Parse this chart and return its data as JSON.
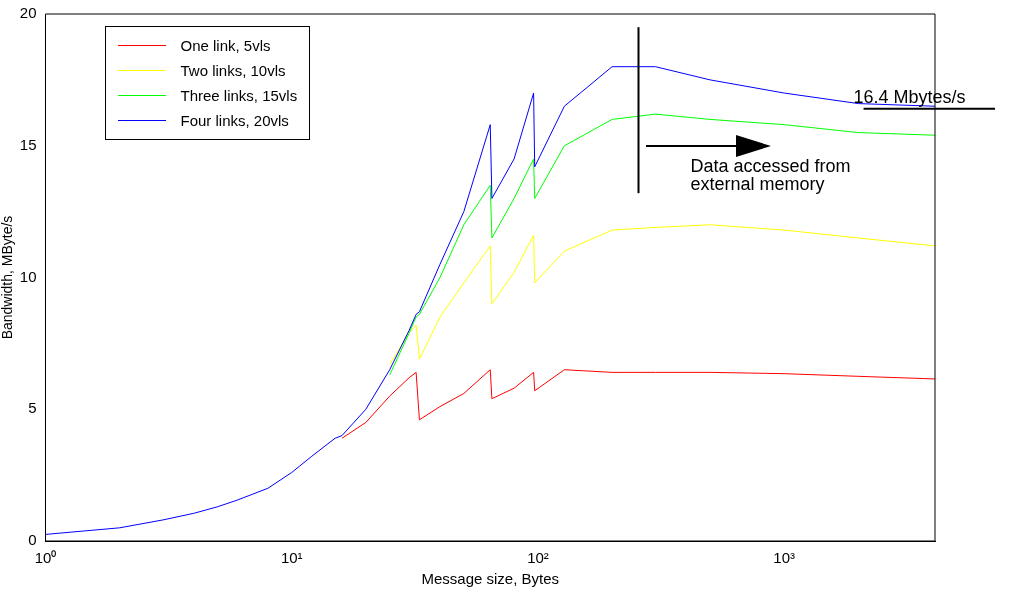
{
  "chart_data": {
    "type": "line",
    "xlabel": "Message size, Bytes",
    "ylabel": "Bandwidth, MByte/s",
    "log": "x",
    "xlim": [
      1,
      4096
    ],
    "ylim": [
      0,
      20
    ],
    "xticks": [
      {
        "value": 1,
        "label": "10⁰"
      },
      {
        "value": 10,
        "label": "10¹"
      },
      {
        "value": 100,
        "label": "10²"
      },
      {
        "value": 1000,
        "label": "10³"
      }
    ],
    "yticks": [
      0,
      5,
      10,
      15,
      20
    ],
    "grid": false,
    "legend": "top left",
    "marker": "none",
    "line_style": "solid",
    "x": [
      1,
      2,
      3,
      4,
      5,
      6,
      8,
      10,
      12,
      15,
      16,
      20,
      25,
      30,
      32,
      33,
      40,
      50,
      64,
      65,
      80,
      96,
      97,
      128,
      200,
      300,
      500,
      1000,
      2000,
      4096
    ],
    "series": [
      {
        "name": "One link, 5vls",
        "color": "#ff0000",
        "values": [
          null,
          null,
          null,
          null,
          null,
          null,
          null,
          null,
          null,
          null,
          3.9,
          4.5,
          5.5,
          6.2,
          6.4,
          4.6,
          5.1,
          5.6,
          6.5,
          5.4,
          5.8,
          6.4,
          5.7,
          6.5,
          6.4,
          6.4,
          6.4,
          6.35,
          6.25,
          6.15
        ]
      },
      {
        "name": "Two links, 10vls",
        "color": "#ffff00",
        "values": [
          null,
          null,
          null,
          null,
          null,
          null,
          null,
          null,
          null,
          null,
          null,
          null,
          6.7,
          7.9,
          8.2,
          6.9,
          8.5,
          9.8,
          11.2,
          9.0,
          10.2,
          11.6,
          9.8,
          11.0,
          11.8,
          11.9,
          12.0,
          11.8,
          11.5,
          11.2
        ]
      },
      {
        "name": "Three links, 15vls",
        "color": "#00ff00",
        "values": [
          null,
          null,
          null,
          null,
          null,
          null,
          null,
          null,
          null,
          null,
          null,
          null,
          6.3,
          7.9,
          8.5,
          8.6,
          10.0,
          12.0,
          13.5,
          11.5,
          13.0,
          14.5,
          13.0,
          15.0,
          16.0,
          16.2,
          16.0,
          15.8,
          15.5,
          15.4
        ]
      },
      {
        "name": "Four links, 20vls",
        "color": "#0000ff",
        "values": [
          0.25,
          0.5,
          0.8,
          1.05,
          1.3,
          1.55,
          2.0,
          2.6,
          3.2,
          3.9,
          4.0,
          5.0,
          6.5,
          8.0,
          8.6,
          8.7,
          10.5,
          12.5,
          15.8,
          13.0,
          14.5,
          17.0,
          14.2,
          16.5,
          18.0,
          18.0,
          17.5,
          17.0,
          16.6,
          16.5
        ]
      }
    ],
    "ref_lines": [
      {
        "axis": "x",
        "value": 256,
        "color": "#000000"
      }
    ],
    "annotations": [
      {
        "text": "16.4 Mbytes/s",
        "x": 2100,
        "y": 16.4
      },
      "Data accessed from\nexternal memory"
    ]
  }
}
